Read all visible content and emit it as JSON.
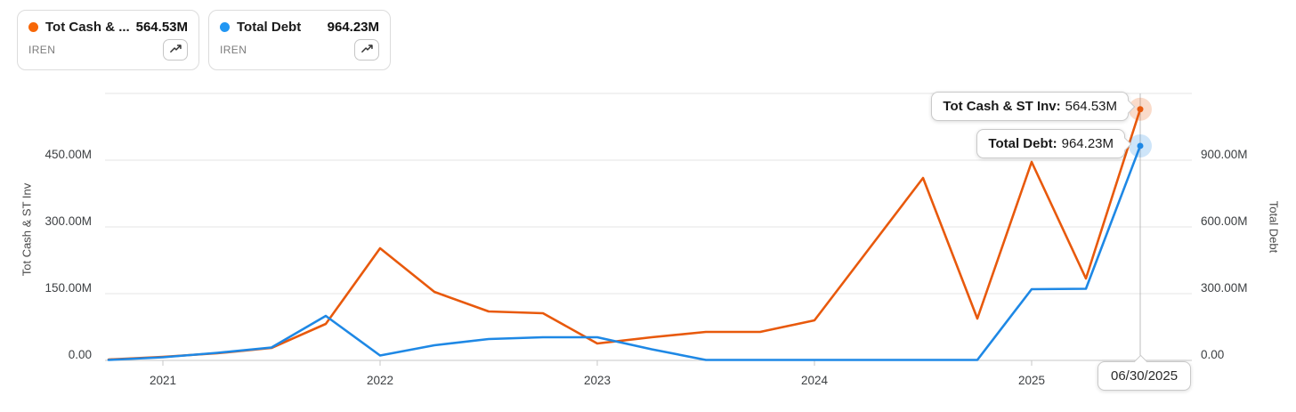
{
  "legend": {
    "cards": [
      {
        "label": "Tot Cash & ...",
        "value": "564.53M",
        "ticker": "IREN",
        "color": "#f76707",
        "icon": "trending-up-icon"
      },
      {
        "label": "Total Debt",
        "value": "964.23M",
        "ticker": "IREN",
        "color": "#2196f3",
        "icon": "trending-up-icon"
      }
    ]
  },
  "tooltips": [
    {
      "label": "Tot Cash & ST Inv:",
      "value": "564.53M"
    },
    {
      "label": "Total Debt:",
      "value": "964.23M"
    }
  ],
  "date_label": "06/30/2025",
  "chart_data": {
    "type": "line",
    "x": [
      "9/30/2020",
      "12/31/2020",
      "3/31/2021",
      "6/30/2021",
      "9/30/2021",
      "12/31/2021",
      "3/31/2022",
      "6/30/2022",
      "9/30/2022",
      "12/31/2022",
      "3/31/2023",
      "6/30/2023",
      "9/30/2023",
      "12/31/2023",
      "3/31/2024",
      "6/30/2024",
      "9/30/2024",
      "12/31/2024",
      "3/31/2025",
      "6/30/2025"
    ],
    "series": [
      {
        "name": "Tot Cash & ST Inv",
        "ticker": "IREN",
        "axis": "left",
        "color": "#e8590c",
        "unit": "M",
        "values": [
          2,
          8,
          16,
          28,
          82,
          252,
          154,
          110,
          106,
          38,
          52,
          64,
          64,
          90,
          250,
          410,
          94,
          446,
          184,
          564.53
        ]
      },
      {
        "name": "Total Debt",
        "ticker": "IREN",
        "axis": "right",
        "color": "#1e88e5",
        "unit": "M",
        "values": [
          2,
          14,
          34,
          58,
          200,
          22,
          68,
          96,
          104,
          104,
          50,
          2,
          2,
          2,
          2,
          2,
          2,
          320,
          322,
          964.23
        ]
      }
    ],
    "left_axis": {
      "title": "Tot Cash & ST Inv",
      "ticks": [
        "450.00M",
        "300.00M",
        "150.00M",
        "0.00"
      ],
      "tick_values": [
        450,
        300,
        150,
        0
      ],
      "range": [
        0,
        600
      ]
    },
    "right_axis": {
      "title": "Total Debt",
      "ticks": [
        "900.00M",
        "600.00M",
        "300.00M",
        "0.00"
      ],
      "tick_values": [
        900,
        600,
        300,
        0
      ],
      "range": [
        0,
        1200
      ]
    },
    "x_axis": {
      "tick_labels": [
        "2021",
        "2022",
        "2023",
        "2024",
        "2025"
      ]
    },
    "grid": "horizontal",
    "legend_position": "top-left",
    "highlight": {
      "date": "06/30/2025",
      "tot_cash_st_inv": "564.53M",
      "total_debt": "964.23M"
    }
  }
}
